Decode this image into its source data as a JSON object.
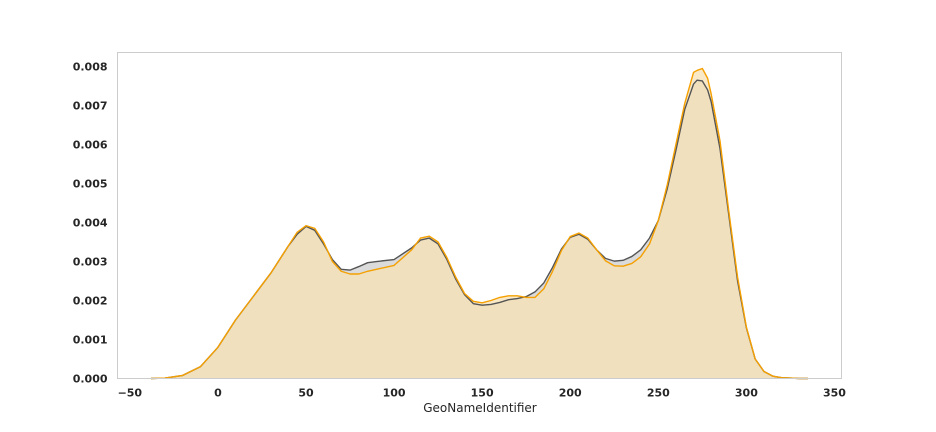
{
  "chart_data": {
    "type": "area",
    "title": "",
    "xlabel": "GeoNameIdentifier",
    "ylabel": "",
    "xlim": [
      -57,
      354
    ],
    "ylim": [
      0,
      0.00836
    ],
    "grid": false,
    "xticks": [
      -50,
      0,
      50,
      100,
      150,
      200,
      250,
      300,
      350
    ],
    "xtick_labels": [
      "−50",
      "0",
      "50",
      "100",
      "150",
      "200",
      "250",
      "300",
      "350"
    ],
    "yticks": [
      0,
      0.001,
      0.002,
      0.003,
      0.004,
      0.005,
      0.006,
      0.007,
      0.008
    ],
    "ytick_labels": [
      "0.000",
      "0.001",
      "0.002",
      "0.003",
      "0.004",
      "0.005",
      "0.006",
      "0.007",
      "0.008"
    ],
    "series": [
      {
        "color": "#555555",
        "fill": "#cfcfcf",
        "x": [
          -38,
          -30,
          -20,
          -10,
          0,
          10,
          20,
          30,
          40,
          45,
          50,
          55,
          60,
          65,
          70,
          75,
          80,
          85,
          90,
          100,
          110,
          115,
          120,
          125,
          130,
          135,
          140,
          145,
          150,
          155,
          160,
          165,
          170,
          175,
          180,
          185,
          190,
          195,
          200,
          205,
          210,
          215,
          220,
          225,
          230,
          235,
          240,
          245,
          250,
          255,
          260,
          265,
          270,
          272,
          275,
          278,
          280,
          285,
          290,
          295,
          300,
          305,
          310,
          315,
          320,
          325,
          330,
          335
        ],
        "y": [
          0,
          1e-05,
          8e-05,
          0.0003,
          0.0008,
          0.0015,
          0.0021,
          0.0027,
          0.0034,
          0.0037,
          0.0039,
          0.0038,
          0.00345,
          0.00305,
          0.0028,
          0.00278,
          0.00287,
          0.00297,
          0.003,
          0.00305,
          0.00335,
          0.00355,
          0.0036,
          0.00345,
          0.00305,
          0.00255,
          0.00215,
          0.00192,
          0.00188,
          0.0019,
          0.00195,
          0.00202,
          0.00205,
          0.0021,
          0.00222,
          0.00245,
          0.00285,
          0.00332,
          0.00362,
          0.0037,
          0.00357,
          0.0033,
          0.00308,
          0.00301,
          0.00303,
          0.00313,
          0.0033,
          0.0036,
          0.00405,
          0.00485,
          0.00585,
          0.0069,
          0.00755,
          0.00765,
          0.00763,
          0.0074,
          0.0071,
          0.0059,
          0.0042,
          0.0025,
          0.0013,
          0.0005,
          0.00018,
          6e-05,
          2e-05,
          1e-05,
          0,
          0
        ]
      },
      {
        "color": "#f5a000",
        "fill": "#f7e2b4",
        "x": [
          -38,
          -30,
          -20,
          -10,
          0,
          10,
          20,
          30,
          40,
          45,
          50,
          55,
          60,
          65,
          70,
          75,
          80,
          85,
          90,
          100,
          110,
          115,
          120,
          125,
          130,
          135,
          140,
          145,
          150,
          155,
          160,
          165,
          170,
          175,
          180,
          185,
          190,
          195,
          200,
          205,
          210,
          215,
          220,
          225,
          230,
          235,
          240,
          245,
          250,
          255,
          260,
          265,
          270,
          272,
          275,
          278,
          280,
          285,
          290,
          295,
          300,
          305,
          310,
          315,
          320,
          325,
          330,
          335
        ],
        "y": [
          0,
          1e-05,
          8e-05,
          0.0003,
          0.0008,
          0.0015,
          0.0021,
          0.0027,
          0.0034,
          0.00375,
          0.00392,
          0.00385,
          0.0035,
          0.003,
          0.00275,
          0.00268,
          0.00268,
          0.00275,
          0.0028,
          0.0029,
          0.0033,
          0.0036,
          0.00365,
          0.0035,
          0.0031,
          0.0026,
          0.00218,
          0.00198,
          0.00194,
          0.002,
          0.00208,
          0.00212,
          0.00212,
          0.00208,
          0.00208,
          0.0023,
          0.00275,
          0.00328,
          0.00364,
          0.00373,
          0.0036,
          0.0033,
          0.00302,
          0.00289,
          0.00288,
          0.00295,
          0.00312,
          0.00345,
          0.00405,
          0.00495,
          0.006,
          0.00705,
          0.00785,
          0.0079,
          0.00795,
          0.0077,
          0.0073,
          0.0061,
          0.0043,
          0.0026,
          0.00132,
          0.0005,
          0.00018,
          6e-05,
          2e-05,
          1e-05,
          0,
          0
        ]
      }
    ]
  }
}
